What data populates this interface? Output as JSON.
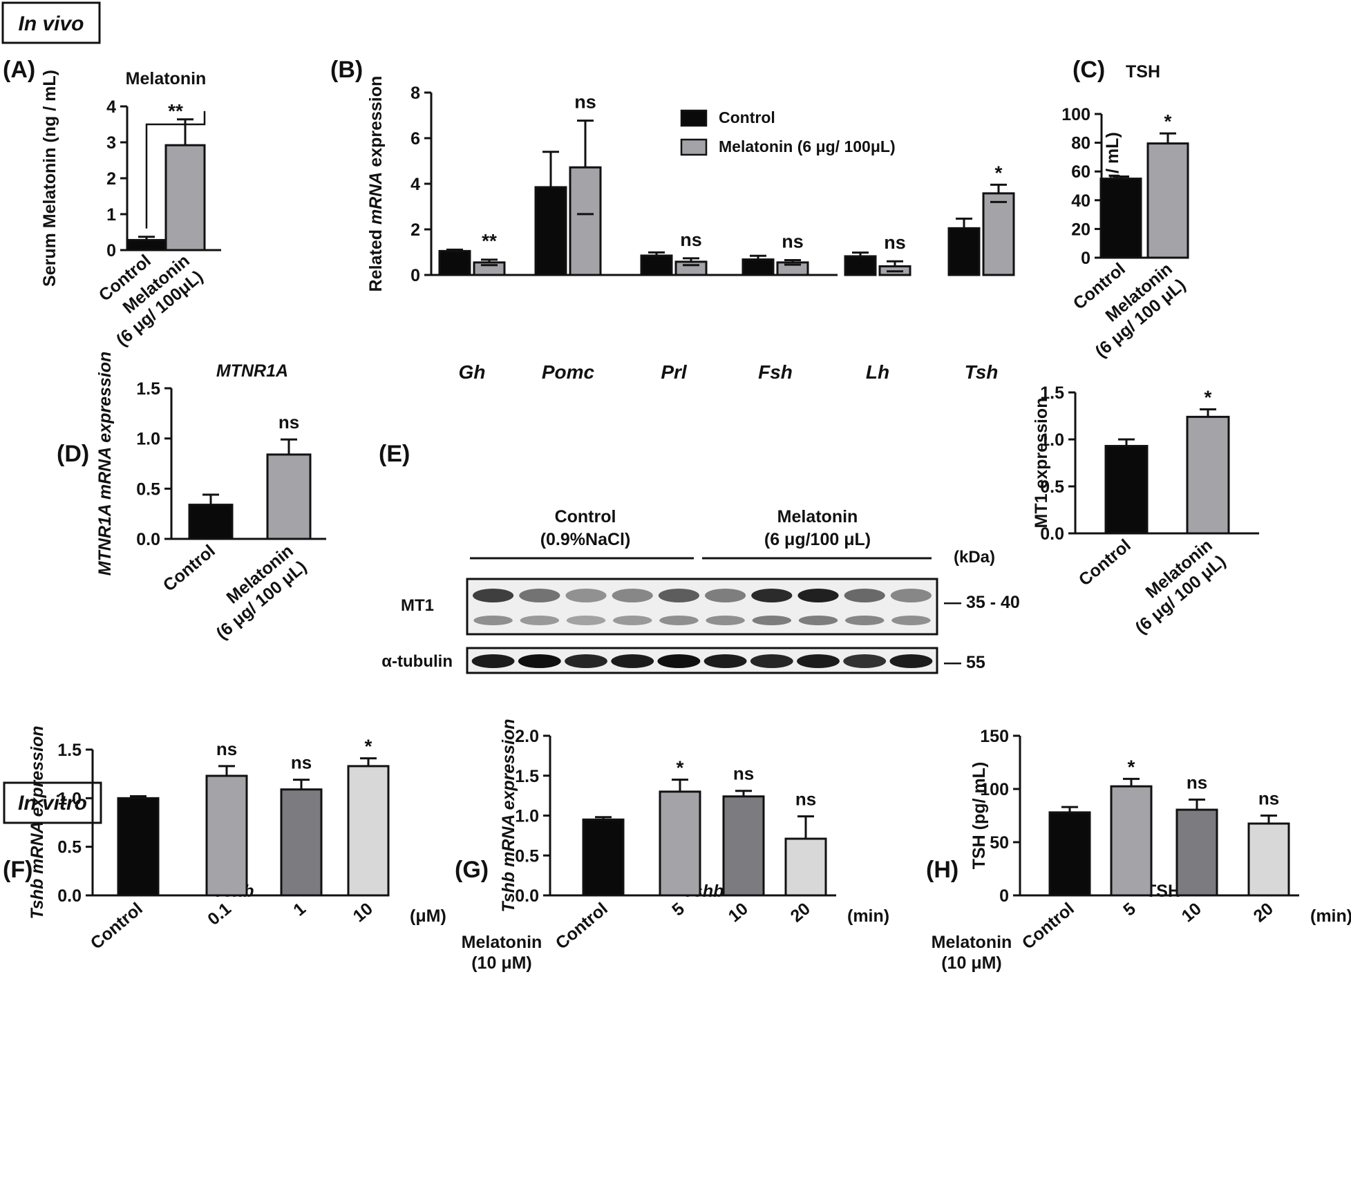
{
  "section_in_vivo": "In vivo",
  "section_in_vitro": "In vitro",
  "colors": {
    "black": "#0a0a0a",
    "gray": "#a3a3a8",
    "darkgray": "#7c7c80",
    "lightgray": "#d8d8d8",
    "white": "#ffffff"
  },
  "chart_data": [
    {
      "id": "A",
      "panel_label": "(A)",
      "type": "bar",
      "title": "Melatonin",
      "ylabel": "Serum Melatonin (ng / mL)",
      "ylim": [
        0,
        4
      ],
      "yticks": [
        0,
        1,
        2,
        3,
        4
      ],
      "categories": [
        "Control",
        "Melatonin\n(6 μg/ 100μL)"
      ],
      "values": [
        0.28,
        2.92
      ],
      "errors": [
        0.09,
        0.72
      ],
      "colors": [
        "black",
        "gray"
      ],
      "bracket": {
        "from": 0,
        "to": 1,
        "label": "**"
      }
    },
    {
      "id": "B",
      "panel_label": "(B)",
      "type": "bar",
      "title": "",
      "ylabel": "Related mRNA expression",
      "ylim": [
        0,
        8
      ],
      "yticks": [
        0,
        2,
        4,
        6,
        8
      ],
      "categories": [
        "Gh",
        "Pomc",
        "Prl",
        "Fsh",
        "Lh",
        "Tsh"
      ],
      "series": [
        {
          "name": "Control",
          "values": [
            1.05,
            3.85,
            0.85,
            0.68,
            0.82,
            2.05
          ],
          "errors": [
            0.06,
            1.55,
            0.14,
            0.16,
            0.16,
            0.42
          ]
        },
        {
          "name": "Melatonin (6 μg/ 100μL)",
          "values": [
            0.55,
            4.72,
            0.58,
            0.55,
            0.38,
            3.58
          ],
          "errors": [
            0.12,
            2.05,
            0.15,
            0.1,
            0.22,
            0.38
          ]
        }
      ],
      "significance": [
        "**",
        "ns",
        "ns",
        "ns",
        "ns",
        "*"
      ],
      "legend": "top-center"
    },
    {
      "id": "C",
      "panel_label": "(C)",
      "type": "bar",
      "title": "TSH",
      "ylabel": "TSH (pg/ mL)",
      "ylim": [
        0,
        100
      ],
      "yticks": [
        0,
        20,
        40,
        60,
        80,
        100
      ],
      "categories": [
        "Control",
        "Melatonin\n(6 μg/ 100 μL)"
      ],
      "values": [
        55,
        79.5
      ],
      "errors": [
        1.5,
        7
      ],
      "colors": [
        "black",
        "gray"
      ],
      "significance": [
        "",
        "*"
      ]
    },
    {
      "id": "D",
      "panel_label": "(D)",
      "type": "bar",
      "title": "MTNR1A",
      "ylabel": "MTNR1A mRNA expression",
      "ylim": [
        0,
        1.5
      ],
      "yticks": [
        "0.0",
        "0.5",
        "1.0",
        "1.5"
      ],
      "categories": [
        "Control",
        "Melatonin\n(6 μg/ 100 μL)"
      ],
      "values": [
        0.34,
        0.84
      ],
      "errors": [
        0.1,
        0.15
      ],
      "colors": [
        "black",
        "gray"
      ],
      "significance": [
        "",
        "ns"
      ]
    },
    {
      "id": "E",
      "panel_label": "",
      "type": "bar",
      "title": "",
      "ylabel": "MT1 expression",
      "ylim": [
        0,
        1.5
      ],
      "yticks": [
        "0.0",
        "0.5",
        "1.0",
        "1.5"
      ],
      "categories": [
        "Control",
        "Melatonin\n(6 μg/ 100 μL)"
      ],
      "values": [
        0.93,
        1.24
      ],
      "errors": [
        0.07,
        0.08
      ],
      "colors": [
        "black",
        "gray"
      ],
      "significance": [
        "",
        "*"
      ]
    },
    {
      "id": "F",
      "panel_label": "(F)",
      "type": "bar",
      "title": "Tshb",
      "ylabel": "Tshb mRNA expression",
      "ylim": [
        0,
        1.5
      ],
      "yticks": [
        "0.0",
        "0.5",
        "1.0",
        "1.5"
      ],
      "categories": [
        "Control",
        "0.1",
        "1",
        "10"
      ],
      "unit": "(μM)",
      "values": [
        1.0,
        1.23,
        1.09,
        1.33
      ],
      "errors": [
        0.02,
        0.1,
        0.1,
        0.08
      ],
      "colors": [
        "black",
        "gray",
        "darkgray",
        "lightgray"
      ],
      "significance": [
        "",
        "ns",
        "ns",
        "*"
      ]
    },
    {
      "id": "G",
      "panel_label": "(G)",
      "type": "bar",
      "title": "Tshb",
      "ylabel": "Tshb mRNA expression",
      "ylim": [
        0,
        2.0
      ],
      "yticks": [
        "0.0",
        "0.5",
        "1.0",
        "1.5",
        "2.0"
      ],
      "categories": [
        "Control",
        "5",
        "10",
        "20"
      ],
      "unit": "(min)",
      "group_label": "Melatonin\n(10 μM)",
      "values": [
        0.95,
        1.3,
        1.24,
        0.71
      ],
      "errors": [
        0.03,
        0.15,
        0.07,
        0.28
      ],
      "colors": [
        "black",
        "gray",
        "darkgray",
        "lightgray"
      ],
      "significance": [
        "",
        "*",
        "ns",
        "ns"
      ]
    },
    {
      "id": "H",
      "panel_label": "(H)",
      "type": "bar",
      "title": "TSH",
      "ylabel": "TSH (pg/ mL)",
      "ylim": [
        0,
        150
      ],
      "yticks": [
        0,
        50,
        100,
        150
      ],
      "categories": [
        "Control",
        "5",
        "10",
        "20"
      ],
      "unit": "(min)",
      "group_label": "Melatonin\n(10 μM)",
      "values": [
        78,
        102.5,
        80.5,
        67.5
      ],
      "errors": [
        5,
        7,
        9.5,
        7.5
      ],
      "colors": [
        "black",
        "gray",
        "darkgray",
        "lightgray"
      ],
      "significance": [
        "",
        "*",
        "ns",
        "ns"
      ]
    }
  ],
  "western_blot": {
    "panel_label": "(E)",
    "group1_title": "Control",
    "group1_sub": "(0.9%NaCl)",
    "group2_title": "Melatonin",
    "group2_sub": "(6 μg/100 μL)",
    "kda_label": "(kDa)",
    "row1_label": "MT1",
    "row1_kda": "— 35 - 40",
    "row2_label": "α-tubulin",
    "row2_kda": "— 55",
    "lanes": 10,
    "mt1_upper_intensity": [
      0.85,
      0.6,
      0.45,
      0.5,
      0.7,
      0.55,
      0.95,
      1.0,
      0.65,
      0.5
    ],
    "mt1_lower_intensity": [
      0.5,
      0.45,
      0.4,
      0.45,
      0.5,
      0.5,
      0.6,
      0.6,
      0.55,
      0.5
    ],
    "tubulin_intensity": [
      0.95,
      1.0,
      0.9,
      0.95,
      1.0,
      0.95,
      0.9,
      0.95,
      0.85,
      0.95
    ]
  }
}
